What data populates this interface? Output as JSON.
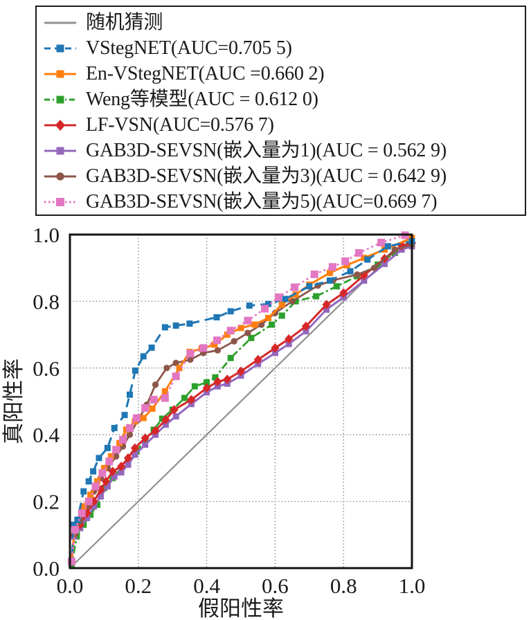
{
  "figure": {
    "background": "#ffffff",
    "text_color": "#1a1a1a",
    "grid_color": "#7f7f7f",
    "frame_color": "#141414"
  },
  "legend": {
    "items": [
      {
        "id": "random",
        "label": "随机猜测",
        "color": "#909090",
        "style": "solid",
        "marker": "none"
      },
      {
        "id": "vstegnet",
        "label": "VStegNET(AUC=0.705 5)",
        "color": "#1f77b4",
        "style": "dashed",
        "marker": "square"
      },
      {
        "id": "envstegnet",
        "label": "En-VStegNET(AUC =0.660 2)",
        "color": "#ff7f0e",
        "style": "solid",
        "marker": "square"
      },
      {
        "id": "weng",
        "label": "Weng等模型(AUC = 0.612 0)",
        "color": "#2ca02c",
        "style": "dashdot",
        "marker": "square"
      },
      {
        "id": "lfvsn",
        "label": "LF-VSN(AUC=0.576 7)",
        "color": "#d62728",
        "style": "solid",
        "marker": "diamond"
      },
      {
        "id": "gab1",
        "label": "GAB3D-SEVSN(嵌入量为1)(AUC = 0.562 9)",
        "color": "#9467bd",
        "style": "solid",
        "marker": "square"
      },
      {
        "id": "gab3",
        "label": "GAB3D-SEVSN(嵌入量为3)(AUC = 0.642 9)",
        "color": "#8c564b",
        "style": "solid",
        "marker": "circle"
      },
      {
        "id": "gab5",
        "label": "GAB3D-SEVSN(嵌入量为5)(AUC=0.669 7)",
        "color": "#e377c2",
        "style": "dotted",
        "marker": "square"
      }
    ]
  },
  "chart_data": {
    "type": "line",
    "title": "",
    "xlabel": "假阳性率",
    "ylabel": "真阳性率",
    "xlim": [
      0,
      1
    ],
    "ylim": [
      0,
      1
    ],
    "xticks": [
      "0.0",
      "0.2",
      "0.4",
      "0.6",
      "0.8",
      "1.0"
    ],
    "yticks": [
      "0.0",
      "0.2",
      "0.4",
      "0.6",
      "0.8",
      "1.0"
    ],
    "grid": "dotted",
    "legend_position": "top-outside",
    "series": [
      {
        "id": "random",
        "name": "随机猜测",
        "auc": null,
        "color": "#909090",
        "style": "solid",
        "marker": "none",
        "lw": 2.2,
        "points": [
          [
            0,
            0
          ],
          [
            1,
            1
          ]
        ]
      },
      {
        "id": "weng",
        "name": "Weng等模型",
        "auc": 0.612,
        "color": "#2ca02c",
        "style": "dashdot",
        "marker": "square",
        "lw": 2.8,
        "points": [
          [
            0,
            0
          ],
          [
            0.005,
            0.01
          ],
          [
            0.02,
            0.095
          ],
          [
            0.04,
            0.13
          ],
          [
            0.06,
            0.16
          ],
          [
            0.08,
            0.19
          ],
          [
            0.1,
            0.24
          ],
          [
            0.125,
            0.27
          ],
          [
            0.15,
            0.3
          ],
          [
            0.17,
            0.315
          ],
          [
            0.195,
            0.35
          ],
          [
            0.22,
            0.385
          ],
          [
            0.245,
            0.415
          ],
          [
            0.27,
            0.448
          ],
          [
            0.3,
            0.475
          ],
          [
            0.335,
            0.51
          ],
          [
            0.365,
            0.545
          ],
          [
            0.4,
            0.557
          ],
          [
            0.425,
            0.572
          ],
          [
            0.47,
            0.63
          ],
          [
            0.53,
            0.69
          ],
          [
            0.59,
            0.73
          ],
          [
            0.62,
            0.757
          ],
          [
            0.66,
            0.8
          ],
          [
            0.72,
            0.815
          ],
          [
            0.78,
            0.845
          ],
          [
            0.84,
            0.875
          ],
          [
            0.9,
            0.91
          ],
          [
            0.95,
            0.945
          ],
          [
            1,
            0.97
          ]
        ]
      },
      {
        "id": "gab1",
        "name": "GAB3D-SEVSN(嵌入量为1)",
        "auc": 0.5629,
        "color": "#9467bd",
        "style": "solid",
        "marker": "square",
        "lw": 3,
        "points": [
          [
            0,
            0
          ],
          [
            0.005,
            0.02
          ],
          [
            0.012,
            0.095
          ],
          [
            0.03,
            0.12
          ],
          [
            0.05,
            0.15
          ],
          [
            0.07,
            0.185
          ],
          [
            0.09,
            0.215
          ],
          [
            0.11,
            0.245
          ],
          [
            0.13,
            0.275
          ],
          [
            0.15,
            0.287
          ],
          [
            0.17,
            0.31
          ],
          [
            0.19,
            0.34
          ],
          [
            0.22,
            0.37
          ],
          [
            0.25,
            0.4
          ],
          [
            0.28,
            0.43
          ],
          [
            0.31,
            0.455
          ],
          [
            0.355,
            0.492
          ],
          [
            0.4,
            0.527
          ],
          [
            0.432,
            0.545
          ],
          [
            0.46,
            0.553
          ],
          [
            0.5,
            0.577
          ],
          [
            0.55,
            0.612
          ],
          [
            0.6,
            0.645
          ],
          [
            0.64,
            0.672
          ],
          [
            0.69,
            0.71
          ],
          [
            0.75,
            0.775
          ],
          [
            0.8,
            0.812
          ],
          [
            0.86,
            0.862
          ],
          [
            0.92,
            0.912
          ],
          [
            0.97,
            0.955
          ],
          [
            1,
            0.965
          ]
        ]
      },
      {
        "id": "lfvsn",
        "name": "LF-VSN",
        "auc": 0.5767,
        "color": "#d62728",
        "style": "solid",
        "marker": "diamond",
        "lw": 3,
        "points": [
          [
            0,
            0
          ],
          [
            0.005,
            0.02
          ],
          [
            0.012,
            0.1
          ],
          [
            0.03,
            0.13
          ],
          [
            0.05,
            0.165
          ],
          [
            0.07,
            0.2
          ],
          [
            0.09,
            0.235
          ],
          [
            0.105,
            0.26
          ],
          [
            0.125,
            0.29
          ],
          [
            0.15,
            0.305
          ],
          [
            0.17,
            0.33
          ],
          [
            0.19,
            0.36
          ],
          [
            0.22,
            0.39
          ],
          [
            0.25,
            0.412
          ],
          [
            0.28,
            0.445
          ],
          [
            0.305,
            0.475
          ],
          [
            0.355,
            0.505
          ],
          [
            0.4,
            0.54
          ],
          [
            0.432,
            0.559
          ],
          [
            0.46,
            0.566
          ],
          [
            0.5,
            0.59
          ],
          [
            0.55,
            0.625
          ],
          [
            0.6,
            0.66
          ],
          [
            0.64,
            0.687
          ],
          [
            0.69,
            0.725
          ],
          [
            0.75,
            0.79
          ],
          [
            0.8,
            0.825
          ],
          [
            0.86,
            0.878
          ],
          [
            0.92,
            0.928
          ],
          [
            0.97,
            0.967
          ],
          [
            1,
            0.975
          ]
        ]
      },
      {
        "id": "gab3",
        "name": "GAB3D-SEVSN(嵌入量为3)",
        "auc": 0.6429,
        "color": "#8c564b",
        "style": "solid",
        "marker": "circle",
        "lw": 2.8,
        "points": [
          [
            0,
            0
          ],
          [
            0.005,
            0.02
          ],
          [
            0.012,
            0.1
          ],
          [
            0.03,
            0.14
          ],
          [
            0.05,
            0.185
          ],
          [
            0.07,
            0.23
          ],
          [
            0.09,
            0.27
          ],
          [
            0.11,
            0.3
          ],
          [
            0.135,
            0.335
          ],
          [
            0.155,
            0.365
          ],
          [
            0.175,
            0.4
          ],
          [
            0.2,
            0.445
          ],
          [
            0.225,
            0.49
          ],
          [
            0.25,
            0.55
          ],
          [
            0.283,
            0.6
          ],
          [
            0.31,
            0.615
          ],
          [
            0.352,
            0.625
          ],
          [
            0.39,
            0.645
          ],
          [
            0.432,
            0.653
          ],
          [
            0.48,
            0.68
          ],
          [
            0.52,
            0.705
          ],
          [
            0.56,
            0.73
          ],
          [
            0.6,
            0.765
          ],
          [
            0.65,
            0.8
          ],
          [
            0.725,
            0.847
          ],
          [
            0.77,
            0.863
          ],
          [
            0.84,
            0.88
          ],
          [
            0.89,
            0.9
          ],
          [
            0.95,
            0.955
          ],
          [
            1,
            0.97
          ]
        ]
      },
      {
        "id": "envstegnet",
        "name": "En-VStegNET",
        "auc": 0.6602,
        "color": "#ff7f0e",
        "style": "solid",
        "marker": "square",
        "lw": 3,
        "points": [
          [
            0,
            0
          ],
          [
            0.005,
            0.02
          ],
          [
            0.015,
            0.13
          ],
          [
            0.04,
            0.185
          ],
          [
            0.06,
            0.22
          ],
          [
            0.08,
            0.26
          ],
          [
            0.1,
            0.3
          ],
          [
            0.12,
            0.335
          ],
          [
            0.145,
            0.375
          ],
          [
            0.165,
            0.415
          ],
          [
            0.19,
            0.44
          ],
          [
            0.215,
            0.45
          ],
          [
            0.241,
            0.478
          ],
          [
            0.278,
            0.53
          ],
          [
            0.32,
            0.6
          ],
          [
            0.35,
            0.648
          ],
          [
            0.385,
            0.658
          ],
          [
            0.423,
            0.67
          ],
          [
            0.46,
            0.7
          ],
          [
            0.5,
            0.72
          ],
          [
            0.54,
            0.73
          ],
          [
            0.58,
            0.75
          ],
          [
            0.62,
            0.79
          ],
          [
            0.66,
            0.82
          ],
          [
            0.7,
            0.85
          ],
          [
            0.76,
            0.885
          ],
          [
            0.81,
            0.908
          ],
          [
            0.86,
            0.93
          ],
          [
            0.92,
            0.955
          ],
          [
            1,
            0.99
          ]
        ]
      },
      {
        "id": "vstegnet",
        "name": "VStegNET",
        "auc": 0.7055,
        "color": "#1f77b4",
        "style": "dashed",
        "marker": "square",
        "lw": 3,
        "points": [
          [
            0,
            0
          ],
          [
            0.005,
            0.02
          ],
          [
            0.012,
            0.13
          ],
          [
            0.022,
            0.145
          ],
          [
            0.04,
            0.23
          ],
          [
            0.055,
            0.26
          ],
          [
            0.068,
            0.29
          ],
          [
            0.085,
            0.33
          ],
          [
            0.11,
            0.36
          ],
          [
            0.13,
            0.42
          ],
          [
            0.16,
            0.459
          ],
          [
            0.175,
            0.52
          ],
          [
            0.191,
            0.592
          ],
          [
            0.215,
            0.635
          ],
          [
            0.239,
            0.661
          ],
          [
            0.278,
            0.722
          ],
          [
            0.31,
            0.727
          ],
          [
            0.35,
            0.733
          ],
          [
            0.429,
            0.752
          ],
          [
            0.47,
            0.77
          ],
          [
            0.525,
            0.787
          ],
          [
            0.58,
            0.792
          ],
          [
            0.63,
            0.807
          ],
          [
            0.7,
            0.845
          ],
          [
            0.76,
            0.862
          ],
          [
            0.82,
            0.89
          ],
          [
            0.87,
            0.925
          ],
          [
            0.93,
            0.965
          ],
          [
            1,
            0.98
          ]
        ]
      },
      {
        "id": "gab5",
        "name": "GAB3D-SEVSN(嵌入量为5)",
        "auc": 0.6697,
        "color": "#e377c2",
        "style": "dotted",
        "marker": "square",
        "lw": 2.6,
        "points": [
          [
            0,
            0
          ],
          [
            0.005,
            0.02
          ],
          [
            0.015,
            0.115
          ],
          [
            0.035,
            0.165
          ],
          [
            0.055,
            0.2
          ],
          [
            0.075,
            0.245
          ],
          [
            0.095,
            0.285
          ],
          [
            0.115,
            0.32
          ],
          [
            0.135,
            0.355
          ],
          [
            0.155,
            0.385
          ],
          [
            0.175,
            0.42
          ],
          [
            0.195,
            0.45
          ],
          [
            0.22,
            0.48
          ],
          [
            0.245,
            0.505
          ],
          [
            0.278,
            0.51
          ],
          [
            0.31,
            0.575
          ],
          [
            0.352,
            0.643
          ],
          [
            0.39,
            0.66
          ],
          [
            0.43,
            0.683
          ],
          [
            0.47,
            0.712
          ],
          [
            0.52,
            0.742
          ],
          [
            0.57,
            0.778
          ],
          [
            0.61,
            0.812
          ],
          [
            0.657,
            0.842
          ],
          [
            0.715,
            0.881
          ],
          [
            0.768,
            0.903
          ],
          [
            0.805,
            0.92
          ],
          [
            0.845,
            0.945
          ],
          [
            0.91,
            0.976
          ],
          [
            0.98,
            0.998
          ]
        ]
      }
    ]
  }
}
